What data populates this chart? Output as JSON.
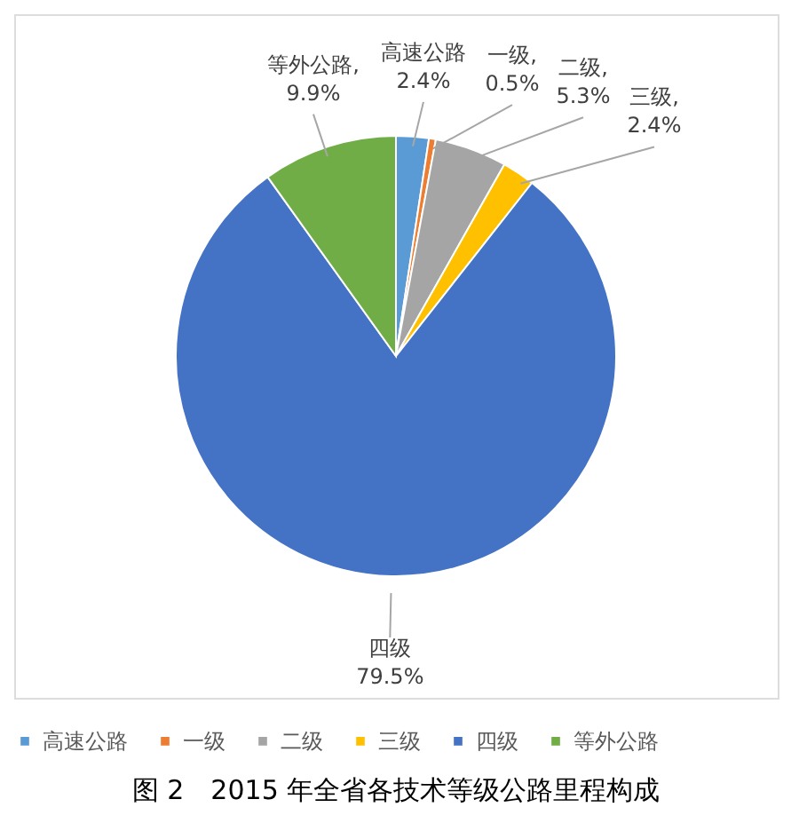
{
  "chart_data": {
    "type": "pie",
    "title": "图 2　2015 年全省各技术等级公路里程构成",
    "categories": [
      "高速公路",
      "一级",
      "二级",
      "三级",
      "四级",
      "等外公路"
    ],
    "values": [
      2.4,
      0.5,
      5.3,
      2.4,
      79.5,
      9.9
    ],
    "colors": [
      "#5b9bd5",
      "#ed7d31",
      "#a5a5a5",
      "#ffc000",
      "#4472c4",
      "#70ad47"
    ],
    "value_labels": [
      "高速公路\n2.4%",
      "一级,\n0.5%",
      "二级,\n5.3%",
      "三级,\n2.4%",
      "四级\n79.5%",
      "等外公路,\n9.9%"
    ],
    "legend": "bottom"
  }
}
